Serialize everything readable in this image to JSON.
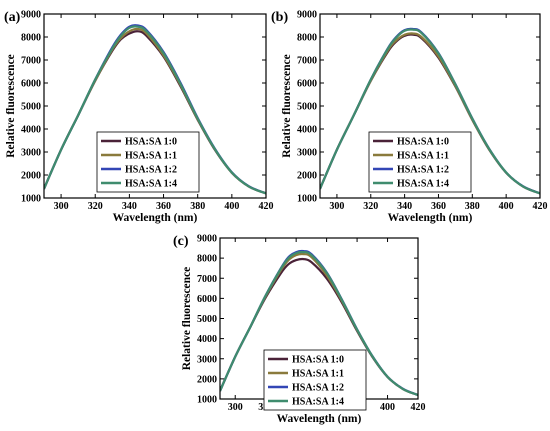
{
  "chart_data": [
    {
      "type": "line",
      "panel_label": "(a)",
      "xlabel": "Wavelength (nm)",
      "ylabel": "Relative fluorescence",
      "xlim": [
        290,
        420
      ],
      "ylim": [
        1000,
        9000
      ],
      "xticks": [
        300,
        320,
        340,
        360,
        380,
        400,
        420
      ],
      "yticks": [
        1000,
        2000,
        3000,
        4000,
        5000,
        6000,
        7000,
        8000,
        9000
      ],
      "legend_position": "lower-middle",
      "x": [
        290,
        300,
        310,
        320,
        330,
        335,
        340,
        345,
        350,
        360,
        370,
        380,
        390,
        400,
        410,
        420
      ],
      "series": [
        {
          "name": "HSA:SA 1:0",
          "color": "#4a2238",
          "values": [
            1400,
            3100,
            4600,
            6100,
            7400,
            7900,
            8150,
            8250,
            8050,
            7150,
            5850,
            4400,
            3100,
            2100,
            1500,
            1200
          ]
        },
        {
          "name": "HSA:SA 1:1",
          "color": "#8a7a3c",
          "values": [
            1400,
            3100,
            4600,
            6100,
            7450,
            7950,
            8250,
            8350,
            8150,
            7200,
            5900,
            4420,
            3120,
            2100,
            1500,
            1200
          ]
        },
        {
          "name": "HSA:SA 1:2",
          "color": "#3346b5",
          "values": [
            1400,
            3100,
            4600,
            6150,
            7550,
            8100,
            8450,
            8500,
            8300,
            7350,
            6000,
            4480,
            3150,
            2120,
            1510,
            1200
          ]
        },
        {
          "name": "HSA:SA 1:4",
          "color": "#3f8c6e",
          "values": [
            1400,
            3100,
            4600,
            6150,
            7500,
            8050,
            8400,
            8450,
            8250,
            7300,
            5950,
            4450,
            3130,
            2110,
            1500,
            1200
          ]
        }
      ]
    },
    {
      "type": "line",
      "panel_label": "(b)",
      "xlabel": "Wavelength (nm)",
      "ylabel": "Relative fluorescence",
      "xlim": [
        290,
        420
      ],
      "ylim": [
        1000,
        9000
      ],
      "xticks": [
        300,
        320,
        340,
        360,
        380,
        400,
        420
      ],
      "yticks": [
        1000,
        2000,
        3000,
        4000,
        5000,
        6000,
        7000,
        8000,
        9000
      ],
      "legend_position": "lower-middle",
      "x": [
        290,
        300,
        310,
        320,
        330,
        335,
        340,
        345,
        350,
        360,
        370,
        380,
        390,
        400,
        410,
        420
      ],
      "series": [
        {
          "name": "HSA:SA 1:0",
          "color": "#4a2238",
          "values": [
            1400,
            3100,
            4600,
            6100,
            7350,
            7800,
            8050,
            8100,
            7950,
            7100,
            5850,
            4400,
            3100,
            2100,
            1500,
            1200
          ]
        },
        {
          "name": "HSA:SA 1:1",
          "color": "#8a7a3c",
          "values": [
            1400,
            3100,
            4600,
            6100,
            7400,
            7850,
            8100,
            8150,
            8000,
            7150,
            5870,
            4410,
            3110,
            2100,
            1500,
            1200
          ]
        },
        {
          "name": "HSA:SA 1:2",
          "color": "#3346b5",
          "values": [
            1400,
            3100,
            4600,
            6150,
            7500,
            8000,
            8300,
            8350,
            8200,
            7300,
            5950,
            4460,
            3140,
            2110,
            1510,
            1200
          ]
        },
        {
          "name": "HSA:SA 1:4",
          "color": "#3f8c6e",
          "values": [
            1400,
            3100,
            4600,
            6150,
            7480,
            7970,
            8270,
            8320,
            8170,
            7280,
            5940,
            4450,
            3130,
            2110,
            1500,
            1200
          ]
        }
      ]
    },
    {
      "type": "line",
      "panel_label": "(c)",
      "xlabel": "Wavelength (nm)",
      "ylabel": "Relative fluorescence",
      "xlim": [
        290,
        420
      ],
      "ylim": [
        1000,
        9000
      ],
      "xticks": [
        300,
        320,
        340,
        360,
        380,
        400,
        420
      ],
      "yticks": [
        1000,
        2000,
        3000,
        4000,
        5000,
        6000,
        7000,
        8000,
        9000
      ],
      "legend_position": "lower-middle",
      "x": [
        290,
        300,
        310,
        320,
        330,
        335,
        340,
        345,
        350,
        360,
        370,
        380,
        390,
        400,
        410,
        420
      ],
      "series": [
        {
          "name": "HSA:SA 1:0",
          "color": "#4a2238",
          "values": [
            1400,
            3100,
            4600,
            6050,
            7250,
            7700,
            7900,
            7950,
            7800,
            7000,
            5800,
            4380,
            3100,
            2100,
            1500,
            1200
          ]
        },
        {
          "name": "HSA:SA 1:1",
          "color": "#8a7a3c",
          "values": [
            1400,
            3100,
            4600,
            6100,
            7400,
            7900,
            8150,
            8200,
            8050,
            7150,
            5880,
            4420,
            3120,
            2100,
            1500,
            1200
          ]
        },
        {
          "name": "HSA:SA 1:2",
          "color": "#3346b5",
          "values": [
            1400,
            3100,
            4600,
            6150,
            7500,
            8050,
            8300,
            8350,
            8200,
            7300,
            5950,
            4460,
            3140,
            2110,
            1510,
            1200
          ]
        },
        {
          "name": "HSA:SA 1:4",
          "color": "#3f8c6e",
          "values": [
            1400,
            3100,
            4600,
            6150,
            7480,
            8000,
            8250,
            8300,
            8150,
            7270,
            5930,
            4450,
            3130,
            2110,
            1500,
            1200
          ]
        }
      ]
    }
  ]
}
